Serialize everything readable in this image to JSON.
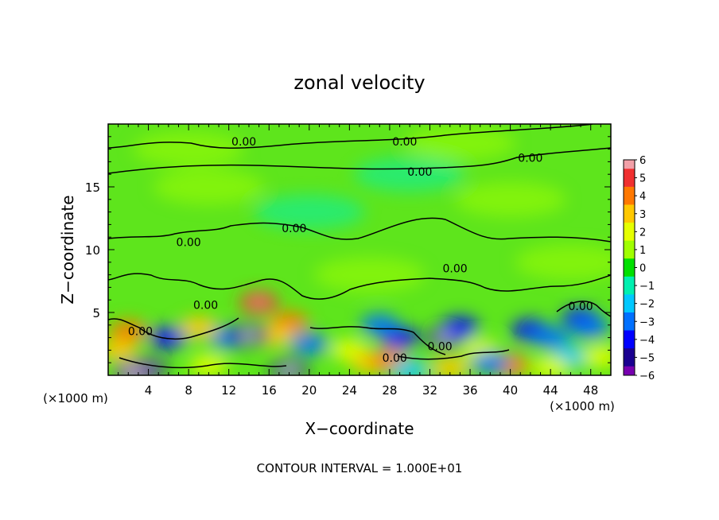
{
  "chart_data": {
    "type": "heatmap",
    "title": "zonal velocity",
    "xlabel": "X−coordinate",
    "ylabel": "Z−coordinate",
    "x_unit_left": "(×1000 m)",
    "x_unit_right": "(×1000 m)",
    "footer": "CONTOUR INTERVAL = 1.000E+01",
    "xlim": [
      0,
      50
    ],
    "ylim": [
      0,
      20
    ],
    "x_ticks": [
      4,
      8,
      12,
      16,
      20,
      24,
      28,
      32,
      36,
      40,
      44,
      48
    ],
    "y_ticks": [
      5,
      10,
      15
    ],
    "colorbar": {
      "ticks": [
        "6",
        "5",
        "4",
        "3",
        "2",
        "1",
        "0",
        "−1",
        "−2",
        "−3",
        "−4",
        "−5",
        "−6"
      ],
      "colors": [
        "#f2a0a8",
        "#f03030",
        "#ff7800",
        "#ffc800",
        "#e6ff00",
        "#a0ff00",
        "#00e000",
        "#00f0b0",
        "#00c8ff",
        "#0070ff",
        "#0000ff",
        "#1a0090",
        "#7800b0"
      ]
    },
    "contour_labels": [
      {
        "text": "0.00",
        "x": 13.5,
        "y": 18.6
      },
      {
        "text": "0.00",
        "x": 29.5,
        "y": 18.6
      },
      {
        "text": "0.00",
        "x": 42.0,
        "y": 17.3
      },
      {
        "text": "0.00",
        "x": 31.0,
        "y": 16.2
      },
      {
        "text": "0.00",
        "x": 18.5,
        "y": 11.7
      },
      {
        "text": "0.00",
        "x": 8.0,
        "y": 10.6
      },
      {
        "text": "0.00",
        "x": 34.5,
        "y": 8.5
      },
      {
        "text": "0.00",
        "x": 9.7,
        "y": 5.6
      },
      {
        "text": "0.00",
        "x": 3.2,
        "y": 3.5
      },
      {
        "text": "0.00",
        "x": 28.5,
        "y": 1.4
      },
      {
        "text": "0.00",
        "x": 33.0,
        "y": 2.3
      },
      {
        "text": "0.00",
        "x": 47.0,
        "y": 5.5
      }
    ],
    "features": [
      {
        "x": 15,
        "y": 5.8,
        "v": 5
      },
      {
        "x": 18,
        "y": 4.2,
        "v": 4
      },
      {
        "x": 16.5,
        "y": 3.2,
        "v": 3
      },
      {
        "x": 2,
        "y": 3.5,
        "v": 4
      },
      {
        "x": 1,
        "y": 2,
        "v": 3
      },
      {
        "x": 6,
        "y": 3,
        "v": -4
      },
      {
        "x": 4,
        "y": 0.5,
        "v": -5
      },
      {
        "x": 2.5,
        "y": 0.2,
        "v": -6
      },
      {
        "x": 12,
        "y": 3,
        "v": -3
      },
      {
        "x": 14,
        "y": 3.2,
        "v": -5
      },
      {
        "x": 20,
        "y": 2.5,
        "v": -3
      },
      {
        "x": 18,
        "y": 0.4,
        "v": -5
      },
      {
        "x": 9,
        "y": 3.8,
        "v": 3
      },
      {
        "x": 10,
        "y": 0.8,
        "v": 2
      },
      {
        "x": 24,
        "y": 2,
        "v": 2
      },
      {
        "x": 26,
        "y": 1,
        "v": 3
      },
      {
        "x": 28,
        "y": 1.2,
        "v": 4
      },
      {
        "x": 29,
        "y": 3,
        "v": -4
      },
      {
        "x": 27,
        "y": 4,
        "v": -3
      },
      {
        "x": 30,
        "y": 0.4,
        "v": -2
      },
      {
        "x": 33.5,
        "y": 3,
        "v": -5
      },
      {
        "x": 35,
        "y": 3.8,
        "v": -4
      },
      {
        "x": 34,
        "y": 0.6,
        "v": 3
      },
      {
        "x": 37,
        "y": 2,
        "v": 2
      },
      {
        "x": 40,
        "y": 0.8,
        "v": 4
      },
      {
        "x": 38,
        "y": 1,
        "v": -3
      },
      {
        "x": 42,
        "y": 3.6,
        "v": -4
      },
      {
        "x": 44,
        "y": 3,
        "v": -3
      },
      {
        "x": 46,
        "y": 1.5,
        "v": -2
      },
      {
        "x": 47,
        "y": 4.5,
        "v": -4
      },
      {
        "x": 48,
        "y": 3.8,
        "v": -3
      },
      {
        "x": 49,
        "y": 1.5,
        "v": 2
      },
      {
        "x": 44,
        "y": 0.6,
        "v": 2
      },
      {
        "x": 30,
        "y": 16,
        "v": -1
      },
      {
        "x": 20,
        "y": 13,
        "v": -1
      },
      {
        "x": 10,
        "y": 15,
        "v": 1
      },
      {
        "x": 40,
        "y": 14,
        "v": 1
      },
      {
        "x": 35,
        "y": 18.5,
        "v": 1
      },
      {
        "x": 8,
        "y": 18,
        "v": 1
      },
      {
        "x": 46,
        "y": 9,
        "v": 1
      },
      {
        "x": 26,
        "y": 8,
        "v": 1
      }
    ],
    "grid": false
  }
}
